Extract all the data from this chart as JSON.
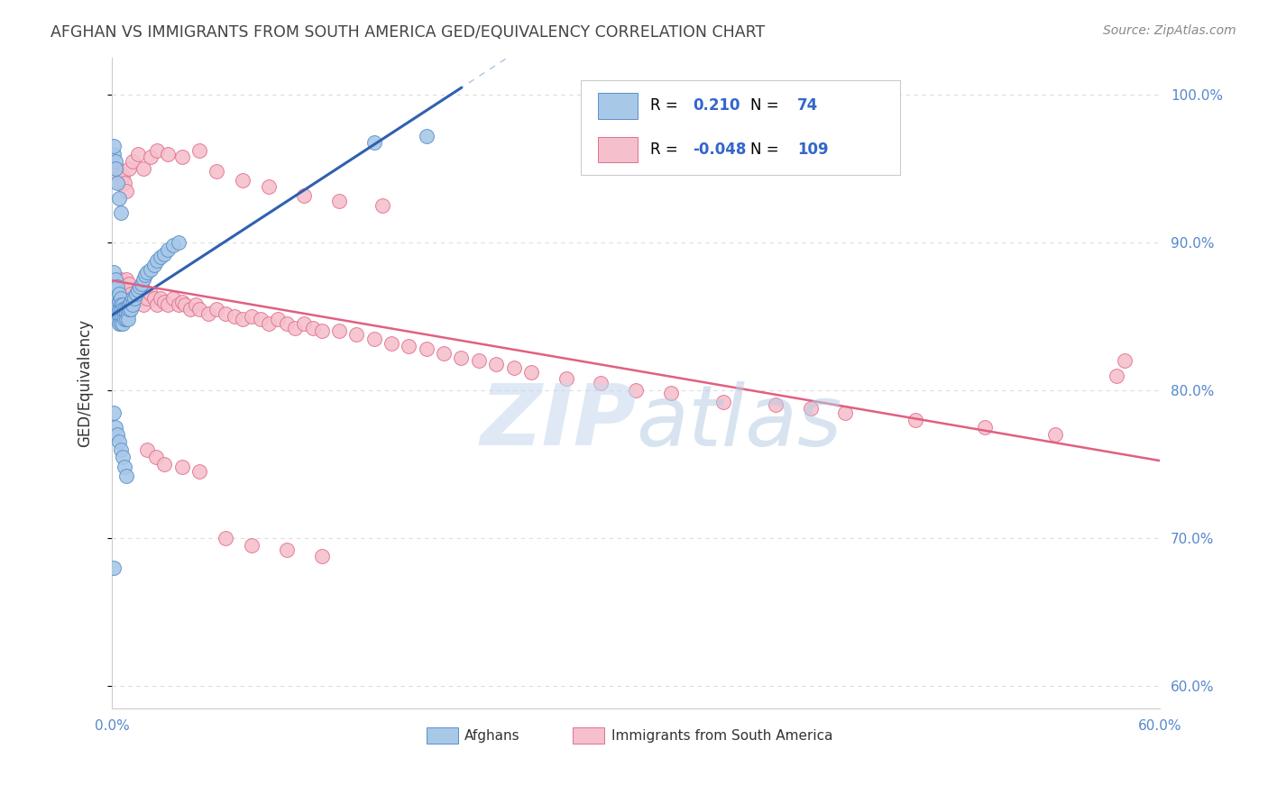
{
  "title": "AFGHAN VS IMMIGRANTS FROM SOUTH AMERICA GED/EQUIVALENCY CORRELATION CHART",
  "source": "Source: ZipAtlas.com",
  "ylabel": "GED/Equivalency",
  "xlim": [
    0.0,
    0.6
  ],
  "ylim": [
    0.585,
    1.025
  ],
  "r_afghan": 0.21,
  "n_afghan": 74,
  "r_sa": -0.048,
  "n_sa": 109,
  "dot_color_afghan": "#A8C8E8",
  "dot_edge_afghan": "#5B8FC8",
  "dot_color_sa": "#F5C0CC",
  "dot_edge_sa": "#E07090",
  "trend_color_afghan": "#3060B0",
  "trend_color_sa": "#E06080",
  "dashed_color": "#8AAAD0",
  "watermark": "ZIPatlas",
  "watermark_color": "#C5D8EE",
  "background_color": "#FFFFFF",
  "grid_color": "#DDDDDD",
  "title_color": "#444444",
  "source_color": "#888888",
  "axis_tick_color": "#5588CC",
  "ylabel_color": "#333333",
  "legend_text_color": "#000000",
  "legend_value_color": "#3366CC",
  "legend_r_sa_color": "#3366CC",
  "bottom_legend_color": "#333333",
  "afghan_x": [
    0.001,
    0.001,
    0.001,
    0.002,
    0.002,
    0.002,
    0.002,
    0.003,
    0.003,
    0.003,
    0.003,
    0.003,
    0.004,
    0.004,
    0.004,
    0.004,
    0.004,
    0.005,
    0.005,
    0.005,
    0.005,
    0.005,
    0.006,
    0.006,
    0.006,
    0.006,
    0.007,
    0.007,
    0.007,
    0.008,
    0.008,
    0.008,
    0.009,
    0.009,
    0.01,
    0.01,
    0.011,
    0.011,
    0.012,
    0.012,
    0.013,
    0.014,
    0.015,
    0.016,
    0.017,
    0.018,
    0.019,
    0.02,
    0.022,
    0.024,
    0.026,
    0.028,
    0.03,
    0.032,
    0.035,
    0.038,
    0.001,
    0.001,
    0.002,
    0.002,
    0.003,
    0.004,
    0.005,
    0.001,
    0.002,
    0.003,
    0.004,
    0.005,
    0.006,
    0.007,
    0.008,
    0.15,
    0.18,
    0.001
  ],
  "afghan_y": [
    0.88,
    0.87,
    0.86,
    0.875,
    0.868,
    0.862,
    0.855,
    0.87,
    0.862,
    0.858,
    0.852,
    0.848,
    0.865,
    0.86,
    0.855,
    0.85,
    0.845,
    0.862,
    0.858,
    0.855,
    0.85,
    0.845,
    0.858,
    0.855,
    0.85,
    0.845,
    0.855,
    0.852,
    0.848,
    0.855,
    0.852,
    0.848,
    0.852,
    0.848,
    0.858,
    0.855,
    0.86,
    0.855,
    0.862,
    0.858,
    0.862,
    0.865,
    0.868,
    0.87,
    0.872,
    0.875,
    0.878,
    0.88,
    0.882,
    0.885,
    0.888,
    0.89,
    0.892,
    0.895,
    0.898,
    0.9,
    0.96,
    0.965,
    0.955,
    0.95,
    0.94,
    0.93,
    0.92,
    0.785,
    0.775,
    0.77,
    0.765,
    0.76,
    0.755,
    0.748,
    0.742,
    0.968,
    0.972,
    0.68
  ],
  "sa_x": [
    0.001,
    0.002,
    0.002,
    0.003,
    0.003,
    0.004,
    0.004,
    0.005,
    0.005,
    0.006,
    0.006,
    0.007,
    0.007,
    0.008,
    0.008,
    0.009,
    0.01,
    0.01,
    0.011,
    0.012,
    0.013,
    0.014,
    0.015,
    0.016,
    0.017,
    0.018,
    0.02,
    0.022,
    0.024,
    0.026,
    0.028,
    0.03,
    0.032,
    0.035,
    0.038,
    0.04,
    0.042,
    0.045,
    0.048,
    0.05,
    0.055,
    0.06,
    0.065,
    0.07,
    0.075,
    0.08,
    0.085,
    0.09,
    0.095,
    0.1,
    0.105,
    0.11,
    0.115,
    0.12,
    0.13,
    0.14,
    0.15,
    0.16,
    0.17,
    0.18,
    0.19,
    0.2,
    0.21,
    0.22,
    0.23,
    0.24,
    0.26,
    0.28,
    0.3,
    0.32,
    0.35,
    0.38,
    0.4,
    0.42,
    0.46,
    0.5,
    0.54,
    0.003,
    0.004,
    0.005,
    0.006,
    0.007,
    0.008,
    0.01,
    0.012,
    0.015,
    0.018,
    0.022,
    0.026,
    0.032,
    0.04,
    0.05,
    0.06,
    0.075,
    0.09,
    0.11,
    0.13,
    0.155,
    0.02,
    0.025,
    0.03,
    0.04,
    0.05,
    0.065,
    0.08,
    0.1,
    0.12,
    0.58,
    0.575
  ],
  "sa_y": [
    0.87,
    0.868,
    0.872,
    0.865,
    0.875,
    0.862,
    0.87,
    0.868,
    0.875,
    0.865,
    0.872,
    0.86,
    0.868,
    0.865,
    0.875,
    0.862,
    0.868,
    0.872,
    0.865,
    0.862,
    0.86,
    0.865,
    0.868,
    0.865,
    0.862,
    0.858,
    0.862,
    0.865,
    0.862,
    0.858,
    0.862,
    0.86,
    0.858,
    0.862,
    0.858,
    0.86,
    0.858,
    0.855,
    0.858,
    0.855,
    0.852,
    0.855,
    0.852,
    0.85,
    0.848,
    0.85,
    0.848,
    0.845,
    0.848,
    0.845,
    0.842,
    0.845,
    0.842,
    0.84,
    0.84,
    0.838,
    0.835,
    0.832,
    0.83,
    0.828,
    0.825,
    0.822,
    0.82,
    0.818,
    0.815,
    0.812,
    0.808,
    0.805,
    0.8,
    0.798,
    0.792,
    0.79,
    0.788,
    0.785,
    0.78,
    0.775,
    0.77,
    0.95,
    0.945,
    0.94,
    0.945,
    0.94,
    0.935,
    0.95,
    0.955,
    0.96,
    0.95,
    0.958,
    0.962,
    0.96,
    0.958,
    0.962,
    0.948,
    0.942,
    0.938,
    0.932,
    0.928,
    0.925,
    0.76,
    0.755,
    0.75,
    0.748,
    0.745,
    0.7,
    0.695,
    0.692,
    0.688,
    0.82,
    0.81
  ]
}
